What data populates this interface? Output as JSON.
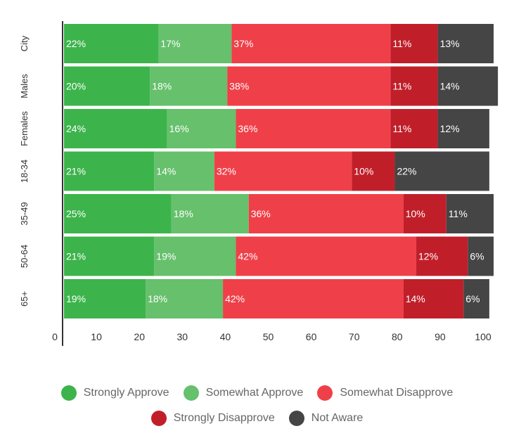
{
  "chart_data": {
    "type": "bar",
    "orientation": "horizontal",
    "stacked": true,
    "categories": [
      "City",
      "Males",
      "Females",
      "18-34",
      "35-49",
      "50-64",
      "65+"
    ],
    "series": [
      {
        "name": "Strongly Approve",
        "color": "#3cb44b",
        "values": [
          22,
          20,
          24,
          21,
          25,
          21,
          19
        ],
        "labels": [
          "22%",
          "20%",
          "24%",
          "21%",
          "25%",
          "21%",
          "19%"
        ]
      },
      {
        "name": "Somewhat Approve",
        "color": "#66c06c",
        "values": [
          17,
          18,
          16,
          14,
          18,
          19,
          18
        ],
        "labels": [
          "17%",
          "18%",
          "16%",
          "14%",
          "18%",
          "19%",
          "18%"
        ]
      },
      {
        "name": "Somewhat Disapprove",
        "color": "#ef4049",
        "values": [
          37,
          38,
          36,
          32,
          36,
          42,
          42
        ],
        "labels": [
          "37%",
          "38%",
          "36%",
          "32%",
          "36%",
          "42%",
          "42%"
        ]
      },
      {
        "name": "Strongly Disapprove",
        "color": "#c01f2a",
        "values": [
          11,
          11,
          11,
          10,
          10,
          12,
          14
        ],
        "labels": [
          "11%",
          "11%",
          "11%",
          "10%",
          "10%",
          "12%",
          "14%"
        ]
      },
      {
        "name": "Not Aware",
        "color": "#454545",
        "values": [
          13,
          14,
          12,
          22,
          11,
          6,
          6
        ],
        "labels": [
          "13%",
          "14%",
          "12%",
          "22%",
          "11%",
          "6%",
          "6%"
        ]
      }
    ],
    "x_ticks": [
      "0",
      "10",
      "20",
      "30",
      "40",
      "50",
      "60",
      "70",
      "80",
      "90",
      "100"
    ],
    "xlim": [
      0,
      100
    ],
    "title": "",
    "xlabel": "",
    "ylabel": "",
    "grid": false,
    "legend_position": "bottom"
  },
  "legend": {
    "row1": [
      {
        "label": "Strongly Approve",
        "color": "#3cb44b"
      },
      {
        "label": "Somewhat Approve",
        "color": "#66c06c"
      },
      {
        "label": "Somewhat Disapprove",
        "color": "#ef4049"
      }
    ],
    "row2": [
      {
        "label": "Strongly Disapprove",
        "color": "#c01f2a"
      },
      {
        "label": "Not Aware",
        "color": "#454545"
      }
    ]
  }
}
